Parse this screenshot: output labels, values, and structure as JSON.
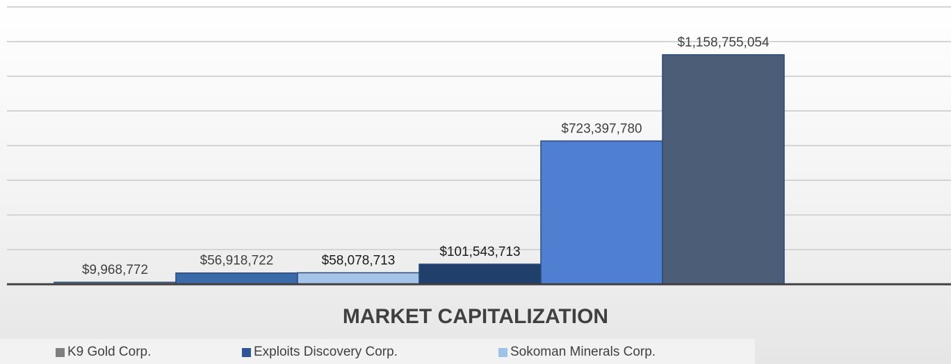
{
  "chart_data": {
    "type": "bar",
    "title": "MARKET CAPITALIZATION",
    "xlabel": "",
    "ylabel": "",
    "ylim": [
      0,
      1400000000
    ],
    "grid": true,
    "legend_position": "bottom",
    "categories": [
      "K9 Gold Corp.",
      "Exploits Discovery Corp.",
      "Sokoman Minerals Corp.",
      "",
      "",
      ""
    ],
    "values": [
      9968772,
      56918722,
      58078713,
      101543713,
      723397780,
      1158755054
    ],
    "value_labels": [
      "$9,968,772",
      "$56,918,722",
      "$58,078,713",
      "$101,543,713",
      "$723,397,780",
      "$1,158,755,054"
    ],
    "colors": [
      "#7f7f7f",
      "#3b6aa8",
      "#a6c3e8",
      "#203f6b",
      "#4e7fd1",
      "#4b5d77"
    ]
  },
  "legend": [
    {
      "label": "K9 Gold Corp.",
      "color": "#7f7f7f"
    },
    {
      "label": "Exploits Discovery Corp.",
      "color": "#2f5597"
    },
    {
      "label": "Sokoman Minerals Corp.",
      "color": "#9dc3e6"
    }
  ]
}
